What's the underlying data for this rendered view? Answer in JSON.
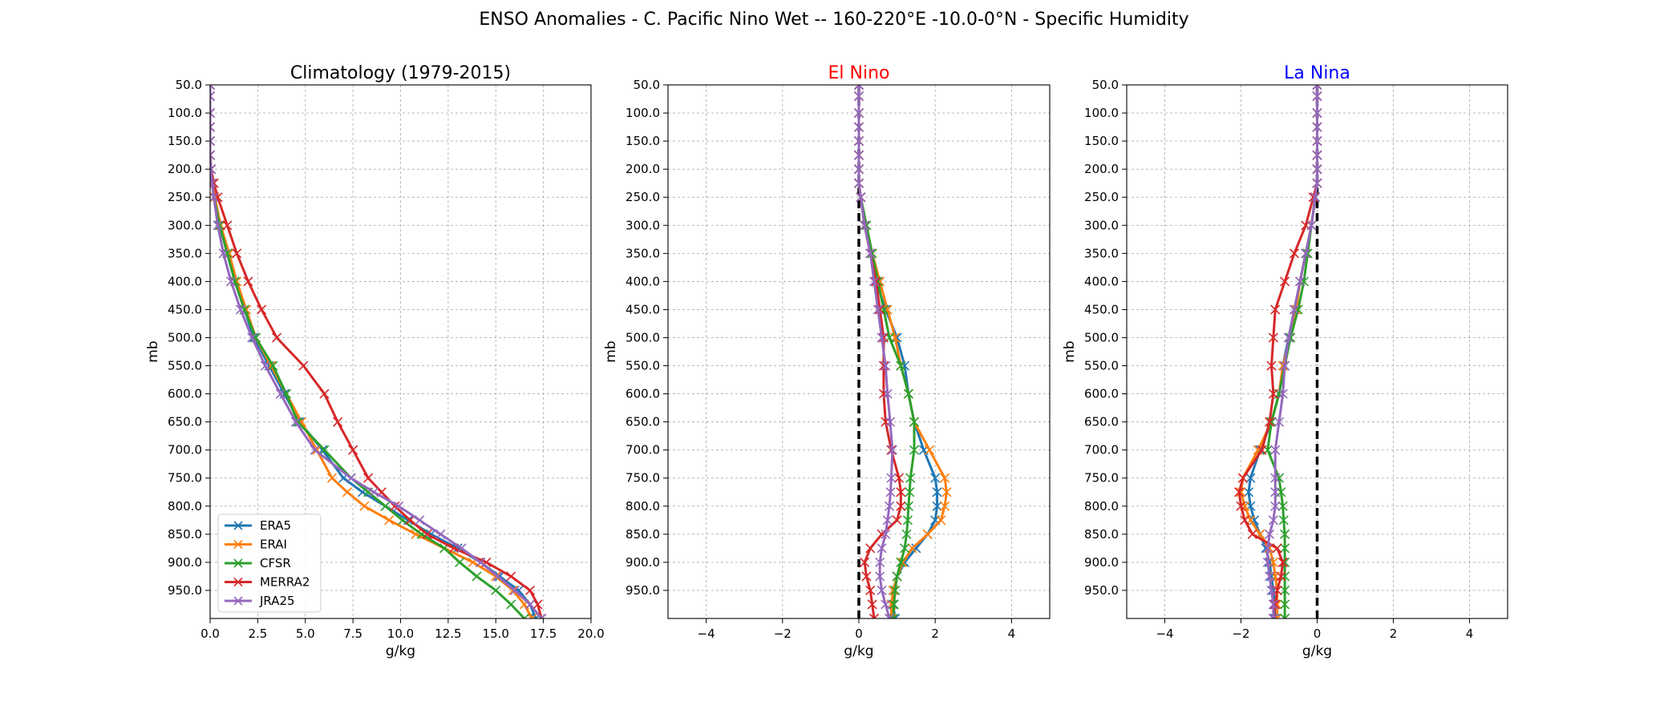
{
  "suptitle": "ENSO Anomalies - C. Pacific Nino Wet -- 160-220°E -10.0-0°N - Specific Humidity",
  "colors": {
    "ERA5": "#1f77b4",
    "ERAI": "#ff7f0e",
    "CFSR": "#2ca02c",
    "MERRA2": "#d62728",
    "JRA25": "#9467bd",
    "el_nino_title": "#ff0000",
    "la_nina_title": "#0000ff"
  },
  "chart_data": [
    {
      "type": "line",
      "title": "Climatology (1979-2015)",
      "title_color": "#000000",
      "xlabel": "g/kg",
      "ylabel": "mb",
      "xlim": [
        0,
        20
      ],
      "ylim": [
        1000,
        50
      ],
      "xticks": [
        0,
        2.5,
        5,
        7.5,
        10,
        12.5,
        15,
        17.5,
        20
      ],
      "xtick_labels": [
        "0.0",
        "2.5",
        "5.0",
        "7.5",
        "10.0",
        "12.5",
        "15.0",
        "17.5",
        "20.0"
      ],
      "yticks": [
        50,
        100,
        150,
        200,
        250,
        300,
        350,
        400,
        450,
        500,
        550,
        600,
        650,
        700,
        750,
        800,
        850,
        900,
        950
      ],
      "ytick_labels": [
        "50.0",
        "100.0",
        "150.0",
        "200.0",
        "250.0",
        "300.0",
        "350.0",
        "400.0",
        "450.0",
        "500.0",
        "550.0",
        "600.0",
        "650.0",
        "700.0",
        "750.0",
        "800.0",
        "850.0",
        "900.0",
        "950.0"
      ],
      "grid": true,
      "legend": "lower-left",
      "zero_line": false,
      "levels": [
        50,
        70,
        100,
        125,
        150,
        175,
        200,
        225,
        250,
        300,
        350,
        400,
        450,
        500,
        550,
        600,
        650,
        700,
        750,
        775,
        800,
        825,
        850,
        875,
        900,
        925,
        950,
        975,
        1000
      ],
      "series": [
        {
          "name": "ERA5",
          "values": [
            0.0,
            0.0,
            0.0,
            0.0,
            0.0,
            0.0,
            0.05,
            0.1,
            0.2,
            0.5,
            0.9,
            1.3,
            1.8,
            2.3,
            3.1,
            3.9,
            4.7,
            5.9,
            7.0,
            8.0,
            9.2,
            10.4,
            11.6,
            13.0,
            14.2,
            15.2,
            16.2,
            16.8,
            17.1
          ]
        },
        {
          "name": "ERAI",
          "values": [
            0.0,
            0.0,
            0.0,
            0.0,
            0.0,
            0.0,
            0.05,
            0.1,
            0.25,
            0.55,
            1.0,
            1.4,
            1.9,
            2.4,
            3.2,
            4.0,
            4.8,
            5.6,
            6.4,
            7.2,
            8.1,
            9.4,
            10.8,
            12.3,
            13.8,
            15.0,
            15.9,
            16.5,
            16.9
          ]
        },
        {
          "name": "CFSR",
          "values": [
            0.0,
            0.0,
            0.0,
            0.0,
            0.0,
            0.0,
            0.05,
            0.1,
            0.2,
            0.5,
            0.9,
            1.3,
            1.8,
            2.4,
            3.3,
            4.0,
            4.6,
            6.0,
            7.4,
            8.3,
            9.2,
            10.1,
            11.1,
            12.3,
            13.1,
            14.0,
            15.0,
            15.8,
            16.5
          ]
        },
        {
          "name": "MERRA2",
          "values": [
            0.0,
            0.0,
            0.0,
            0.0,
            0.0,
            0.0,
            0.05,
            0.2,
            0.4,
            0.9,
            1.4,
            2.0,
            2.7,
            3.5,
            4.9,
            6.0,
            6.7,
            7.5,
            8.3,
            9.0,
            9.7,
            10.5,
            11.4,
            12.8,
            14.5,
            15.8,
            16.8,
            17.2,
            17.4
          ]
        },
        {
          "name": "JRA25",
          "values": [
            0.0,
            0.0,
            0.0,
            0.0,
            0.0,
            0.0,
            0.05,
            0.1,
            0.2,
            0.4,
            0.7,
            1.1,
            1.6,
            2.2,
            2.9,
            3.7,
            4.5,
            5.5,
            7.4,
            8.6,
            9.9,
            11.0,
            12.1,
            13.2,
            14.2,
            15.1,
            16.0,
            16.8,
            17.4
          ]
        }
      ]
    },
    {
      "type": "line",
      "title": "El Nino",
      "title_color": "#ff0000",
      "xlabel": "g/kg",
      "ylabel": "mb",
      "xlim": [
        -5,
        5
      ],
      "ylim": [
        1000,
        50
      ],
      "xticks": [
        -4,
        -2,
        0,
        2,
        4
      ],
      "xtick_labels": [
        "−4",
        "−2",
        "0",
        "2",
        "4"
      ],
      "yticks": [
        50,
        100,
        150,
        200,
        250,
        300,
        350,
        400,
        450,
        500,
        550,
        600,
        650,
        700,
        750,
        800,
        850,
        900,
        950
      ],
      "ytick_labels": [
        "50.0",
        "100.0",
        "150.0",
        "200.0",
        "250.0",
        "300.0",
        "350.0",
        "400.0",
        "450.0",
        "500.0",
        "550.0",
        "600.0",
        "650.0",
        "700.0",
        "750.0",
        "800.0",
        "850.0",
        "900.0",
        "950.0"
      ],
      "grid": true,
      "zero_line": true,
      "levels": [
        50,
        70,
        100,
        125,
        150,
        175,
        200,
        225,
        250,
        300,
        350,
        400,
        450,
        500,
        550,
        600,
        650,
        700,
        750,
        775,
        800,
        825,
        850,
        875,
        900,
        925,
        950,
        975,
        1000
      ],
      "series": [
        {
          "name": "ERA5",
          "values": [
            0.0,
            0.0,
            0.0,
            0.0,
            0.0,
            0.0,
            0.0,
            0.0,
            0.05,
            0.15,
            0.3,
            0.45,
            0.7,
            1.0,
            1.2,
            1.3,
            1.45,
            1.7,
            2.0,
            2.05,
            2.05,
            2.0,
            1.8,
            1.5,
            1.2,
            1.0,
            0.9,
            0.9,
            0.95
          ]
        },
        {
          "name": "ERAI",
          "values": [
            0.0,
            0.0,
            0.0,
            0.0,
            0.0,
            0.0,
            0.0,
            0.0,
            0.05,
            0.15,
            0.35,
            0.55,
            0.75,
            0.95,
            1.1,
            1.3,
            1.45,
            1.85,
            2.25,
            2.3,
            2.25,
            2.15,
            1.8,
            1.4,
            1.15,
            1.0,
            0.9,
            0.85,
            0.85
          ]
        },
        {
          "name": "CFSR",
          "values": [
            0.0,
            0.0,
            0.0,
            0.0,
            0.0,
            0.0,
            0.0,
            0.0,
            0.05,
            0.2,
            0.35,
            0.5,
            0.65,
            0.8,
            1.1,
            1.3,
            1.45,
            1.45,
            1.35,
            1.33,
            1.3,
            1.28,
            1.25,
            1.2,
            1.1,
            1.0,
            0.95,
            0.92,
            0.9
          ]
        },
        {
          "name": "MERRA2",
          "values": [
            0.0,
            0.0,
            0.0,
            0.0,
            0.0,
            0.0,
            0.0,
            0.0,
            0.05,
            0.15,
            0.3,
            0.45,
            0.55,
            0.65,
            0.65,
            0.65,
            0.7,
            0.85,
            1.05,
            1.1,
            1.1,
            1.0,
            0.6,
            0.3,
            0.15,
            0.2,
            0.3,
            0.35,
            0.4
          ]
        },
        {
          "name": "JRA25",
          "values": [
            0.0,
            0.0,
            0.0,
            0.0,
            0.0,
            0.0,
            0.0,
            0.0,
            0.05,
            0.15,
            0.3,
            0.4,
            0.5,
            0.6,
            0.7,
            0.75,
            0.82,
            0.88,
            0.85,
            0.83,
            0.8,
            0.75,
            0.7,
            0.6,
            0.55,
            0.55,
            0.6,
            0.7,
            0.8
          ]
        }
      ]
    },
    {
      "type": "line",
      "title": "La Nina",
      "title_color": "#0000ff",
      "xlabel": "g/kg",
      "ylabel": "mb",
      "xlim": [
        -5,
        5
      ],
      "ylim": [
        1000,
        50
      ],
      "xticks": [
        -4,
        -2,
        0,
        2,
        4
      ],
      "xtick_labels": [
        "−4",
        "−2",
        "0",
        "2",
        "4"
      ],
      "yticks": [
        50,
        100,
        150,
        200,
        250,
        300,
        350,
        400,
        450,
        500,
        550,
        600,
        650,
        700,
        750,
        800,
        850,
        900,
        950
      ],
      "ytick_labels": [
        "50.0",
        "100.0",
        "150.0",
        "200.0",
        "250.0",
        "300.0",
        "350.0",
        "400.0",
        "450.0",
        "500.0",
        "550.0",
        "600.0",
        "650.0",
        "700.0",
        "750.0",
        "800.0",
        "850.0",
        "900.0",
        "950.0"
      ],
      "grid": true,
      "zero_line": true,
      "levels": [
        50,
        70,
        100,
        125,
        150,
        175,
        200,
        225,
        250,
        300,
        350,
        400,
        450,
        500,
        550,
        600,
        650,
        700,
        750,
        775,
        800,
        825,
        850,
        875,
        900,
        925,
        950,
        975,
        1000
      ],
      "series": [
        {
          "name": "ERA5",
          "values": [
            0.0,
            0.0,
            0.0,
            0.0,
            0.0,
            0.0,
            0.0,
            0.0,
            -0.05,
            -0.15,
            -0.3,
            -0.45,
            -0.6,
            -0.75,
            -0.9,
            -1.0,
            -1.2,
            -1.5,
            -1.75,
            -1.8,
            -1.75,
            -1.65,
            -1.5,
            -1.35,
            -1.25,
            -1.2,
            -1.15,
            -1.12,
            -1.1
          ]
        },
        {
          "name": "ERAI",
          "values": [
            0.0,
            0.0,
            0.0,
            0.0,
            0.0,
            0.0,
            0.0,
            0.0,
            -0.05,
            -0.15,
            -0.3,
            -0.45,
            -0.55,
            -0.7,
            -0.9,
            -1.0,
            -1.2,
            -1.55,
            -1.95,
            -2.0,
            -1.9,
            -1.75,
            -1.5,
            -1.25,
            -1.15,
            -1.1,
            -1.05,
            -1.05,
            -1.05
          ]
        },
        {
          "name": "CFSR",
          "values": [
            0.0,
            0.0,
            0.0,
            0.0,
            0.0,
            0.0,
            0.0,
            0.0,
            -0.05,
            -0.15,
            -0.25,
            -0.35,
            -0.5,
            -0.7,
            -0.85,
            -1.0,
            -1.2,
            -1.3,
            -1.0,
            -0.95,
            -0.9,
            -0.88,
            -0.85,
            -0.85,
            -0.85,
            -0.85,
            -0.85,
            -0.85,
            -0.85
          ]
        },
        {
          "name": "MERRA2",
          "values": [
            0.0,
            0.0,
            0.0,
            0.0,
            0.0,
            0.0,
            0.0,
            0.0,
            -0.1,
            -0.3,
            -0.6,
            -0.85,
            -1.1,
            -1.15,
            -1.2,
            -1.15,
            -1.25,
            -1.45,
            -1.95,
            -2.05,
            -2.0,
            -1.9,
            -1.7,
            -1.05,
            -0.9,
            -0.95,
            -1.05,
            -1.1,
            -1.15
          ]
        },
        {
          "name": "JRA25",
          "values": [
            0.0,
            0.0,
            0.0,
            0.0,
            0.0,
            0.0,
            0.0,
            0.0,
            -0.05,
            -0.15,
            -0.3,
            -0.45,
            -0.6,
            -0.75,
            -0.85,
            -0.9,
            -1.0,
            -1.1,
            -1.1,
            -1.1,
            -1.1,
            -1.15,
            -1.25,
            -1.3,
            -1.3,
            -1.25,
            -1.2,
            -1.15,
            -1.15
          ]
        }
      ]
    }
  ]
}
